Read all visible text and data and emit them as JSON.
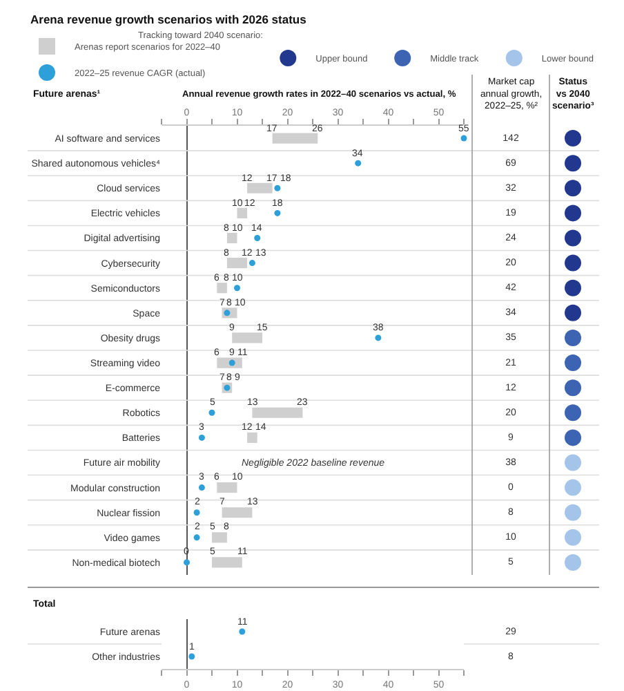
{
  "chart_data": [
    {
      "type": "bar",
      "orientation": "horizontal",
      "title": "Arena revenue growth scenarios with 2026 status",
      "ylabel": "Future arenas¹",
      "xlabel": "Annual revenue growth rates in 2022–40 scenarios vs actual, %",
      "legend": "top",
      "marker": "circle",
      "categories": [
        "AI software and services",
        "Shared autonomous vehicles⁴",
        "Cloud services",
        "Electric vehicles",
        "Digital advertising",
        "Cybersecurity",
        "Semiconductors",
        "Space",
        "Obesity drugs",
        "Streaming video",
        "E-commerce",
        "Robotics",
        "Batteries",
        "Future air mobility",
        "Modular construction",
        "Nuclear fission",
        "Video games",
        "Non-medical biotech"
      ],
      "series": [
        {
          "name": "Arenas report scenarios for 2022–40",
          "color": "#cfcfcf",
          "base": [
            17,
            null,
            12,
            10,
            8,
            8,
            6,
            7,
            9,
            6,
            7,
            13,
            12,
            null,
            6,
            7,
            5,
            5
          ],
          "values": [
            9,
            null,
            5,
            2,
            2,
            4,
            2,
            3,
            6,
            5,
            2,
            10,
            2,
            null,
            4,
            6,
            3,
            6
          ]
        },
        {
          "name": "2022–25 revenue CAGR (actual)",
          "type": "scatter",
          "color": "#2d9fd9",
          "values": [
            55,
            34,
            18,
            18,
            14,
            13,
            10,
            8,
            38,
            9,
            8,
            5,
            3,
            null,
            3,
            2,
            2,
            0
          ],
          "value_labels": [
            "55",
            "34",
            "18",
            "18",
            "14",
            "13",
            "10",
            "8",
            "38",
            "9",
            "8",
            "5",
            "3",
            null,
            "3",
            "2",
            "2",
            "0"
          ]
        }
      ],
      "xlim": [
        -5,
        55
      ],
      "xticks": [
        {
          "value": -5,
          "label": null
        },
        0,
        {
          "value": 5,
          "label": null
        },
        10,
        {
          "value": 15,
          "label": null
        },
        20,
        {
          "value": 25,
          "label": null
        },
        30,
        {
          "value": 35,
          "label": null
        },
        40,
        {
          "value": 45,
          "label": null
        },
        50,
        {
          "value": 55,
          "label": null
        }
      ],
      "annotations": [
        {
          "text": "17",
          "x": 17,
          "y": "AI software and services"
        },
        {
          "text": "26",
          "x": 26,
          "y": "AI software and services"
        },
        {
          "text": "12",
          "x": 12,
          "y": "Cloud services"
        },
        {
          "text": "17",
          "x": 17,
          "y": "Cloud services"
        },
        {
          "text": "10",
          "x": 10,
          "y": "Electric vehicles"
        },
        {
          "text": "12",
          "x": 12,
          "y": "Electric vehicles"
        },
        {
          "text": "8",
          "x": 8,
          "y": "Digital advertising"
        },
        {
          "text": "10",
          "x": 10,
          "y": "Digital advertising"
        },
        {
          "text": "8",
          "x": 8,
          "y": "Cybersecurity"
        },
        {
          "text": "12",
          "x": 12,
          "y": "Cybersecurity"
        },
        {
          "text": "6",
          "x": 6,
          "y": "Semiconductors"
        },
        {
          "text": "8",
          "x": 8,
          "y": "Semiconductors"
        },
        {
          "text": "7",
          "x": 7,
          "y": "Space"
        },
        {
          "text": "10",
          "x": 10,
          "y": "Space"
        },
        {
          "text": "9",
          "x": 9,
          "y": "Obesity drugs"
        },
        {
          "text": "15",
          "x": 15,
          "y": "Obesity drugs"
        },
        {
          "text": "6",
          "x": 6,
          "y": "Streaming video"
        },
        {
          "text": "11",
          "x": 11,
          "y": "Streaming video"
        },
        {
          "text": "7",
          "x": 7,
          "y": "E-commerce"
        },
        {
          "text": "9",
          "x": 9,
          "y": "E-commerce"
        },
        {
          "text": "13",
          "x": 13,
          "y": "Robotics"
        },
        {
          "text": "23",
          "x": 23,
          "y": "Robotics"
        },
        {
          "text": "12",
          "x": 12,
          "y": "Batteries"
        },
        {
          "text": "14",
          "x": 14,
          "y": "Batteries"
        },
        "Negligible 2022 baseline revenue",
        {
          "text": "6",
          "x": 6,
          "y": "Modular construction"
        },
        {
          "text": "10",
          "x": 10,
          "y": "Modular construction"
        },
        {
          "text": "7",
          "x": 7,
          "y": "Nuclear fission"
        },
        {
          "text": "13",
          "x": 13,
          "y": "Nuclear fission"
        },
        {
          "text": "5",
          "x": 5,
          "y": "Video games"
        },
        {
          "text": "8",
          "x": 8,
          "y": "Video games"
        },
        {
          "text": "5",
          "x": 5,
          "y": "Non-medical biotech"
        },
        {
          "text": "11",
          "x": 11,
          "y": "Non-medical biotech"
        }
      ]
    },
    {
      "type": "other",
      "title": "Market cap annual growth, 2022–25, %²",
      "data_labels": true,
      "categories": [
        null,
        null,
        null,
        null,
        null,
        null,
        null,
        null,
        null,
        null,
        null,
        null,
        null,
        null,
        null,
        null,
        null,
        null,
        null,
        null
      ],
      "values": [
        142,
        69,
        32,
        19,
        24,
        20,
        42,
        34,
        35,
        21,
        12,
        20,
        9,
        38,
        0,
        8,
        10,
        5,
        29,
        8
      ]
    },
    {
      "type": "other",
      "title": "Status vs 2040 scenario³",
      "legend_title": "Tracking toward 2040 scenario:",
      "legend": "top",
      "colors": [
        "#22388f",
        "#22388f",
        "#22388f",
        "#22388f",
        "#22388f",
        "#22388f",
        "#22388f",
        "#22388f",
        "#3d63b3",
        "#3d63b3",
        "#3d63b3",
        "#3d63b3",
        "#3d63b3",
        "#a5c4e9",
        "#a5c4e9",
        "#a5c4e9",
        "#a5c4e9",
        "#a5c4e9"
      ],
      "series": [
        {
          "name": "Upper bound",
          "color": "#22388f"
        },
        {
          "name": "Middle track",
          "color": "#3d63b3"
        },
        {
          "name": "Lower bound",
          "color": "#a5c4e9"
        }
      ]
    },
    {
      "type": "scatter",
      "title": "Total",
      "marker": "circle",
      "orientation": "horizontal",
      "categories": [
        "Future arenas",
        "Other industries"
      ],
      "series": [
        {
          "color": "#2d9fd9",
          "values": [
            11,
            1
          ],
          "value_labels": [
            "11",
            "1"
          ]
        }
      ],
      "xlim": [
        -5,
        55
      ],
      "xticks": [
        {
          "value": -5,
          "label": null
        },
        0,
        {
          "value": 5,
          "label": null
        },
        10,
        {
          "value": 15,
          "label": null
        },
        20,
        {
          "value": 25,
          "label": null
        },
        30,
        {
          "value": 35,
          "label": null
        },
        40,
        {
          "value": 45,
          "label": null
        },
        50,
        {
          "value": 55,
          "label": null
        }
      ]
    }
  ]
}
